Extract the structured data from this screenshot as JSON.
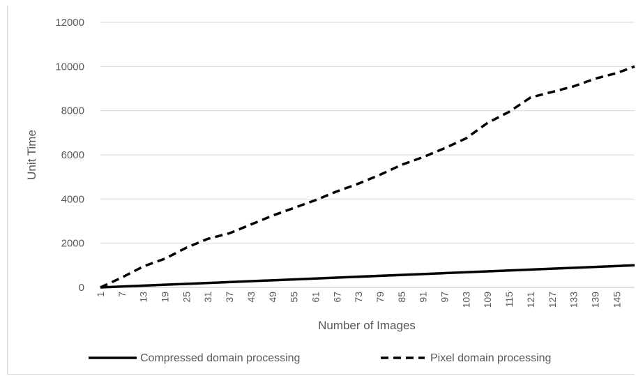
{
  "chart_data": {
    "type": "line",
    "title": "",
    "xlabel": "Number of Images",
    "ylabel": "Unit Time",
    "ylim": [
      0,
      12000
    ],
    "yticks": [
      0,
      2000,
      4000,
      6000,
      8000,
      10000,
      12000
    ],
    "xlim": [
      1,
      150
    ],
    "x_tick_labels": [
      "1",
      "7",
      "13",
      "19",
      "25",
      "31",
      "37",
      "43",
      "49",
      "55",
      "61",
      "67",
      "73",
      "79",
      "85",
      "91",
      "97",
      "103",
      "109",
      "115",
      "121",
      "127",
      "133",
      "139",
      "145"
    ],
    "grid": "horizontal",
    "legend_position": "bottom",
    "series": [
      {
        "name": "Compressed domain processing",
        "style": "solid",
        "color": "#000000",
        "x": [
          1,
          150
        ],
        "y": [
          0,
          1000
        ]
      },
      {
        "name": "Pixel domain processing",
        "style": "dashed",
        "color": "#000000",
        "x": [
          1,
          7,
          13,
          19,
          25,
          31,
          37,
          43,
          49,
          55,
          61,
          67,
          73,
          79,
          85,
          91,
          97,
          103,
          109,
          115,
          121,
          127,
          133,
          139,
          145,
          150
        ],
        "y": [
          0,
          450,
          950,
          1300,
          1800,
          2200,
          2450,
          2850,
          3250,
          3600,
          3950,
          4350,
          4700,
          5100,
          5550,
          5900,
          6300,
          6750,
          7450,
          7950,
          8600,
          8850,
          9100,
          9450,
          9700,
          10000
        ]
      }
    ]
  }
}
